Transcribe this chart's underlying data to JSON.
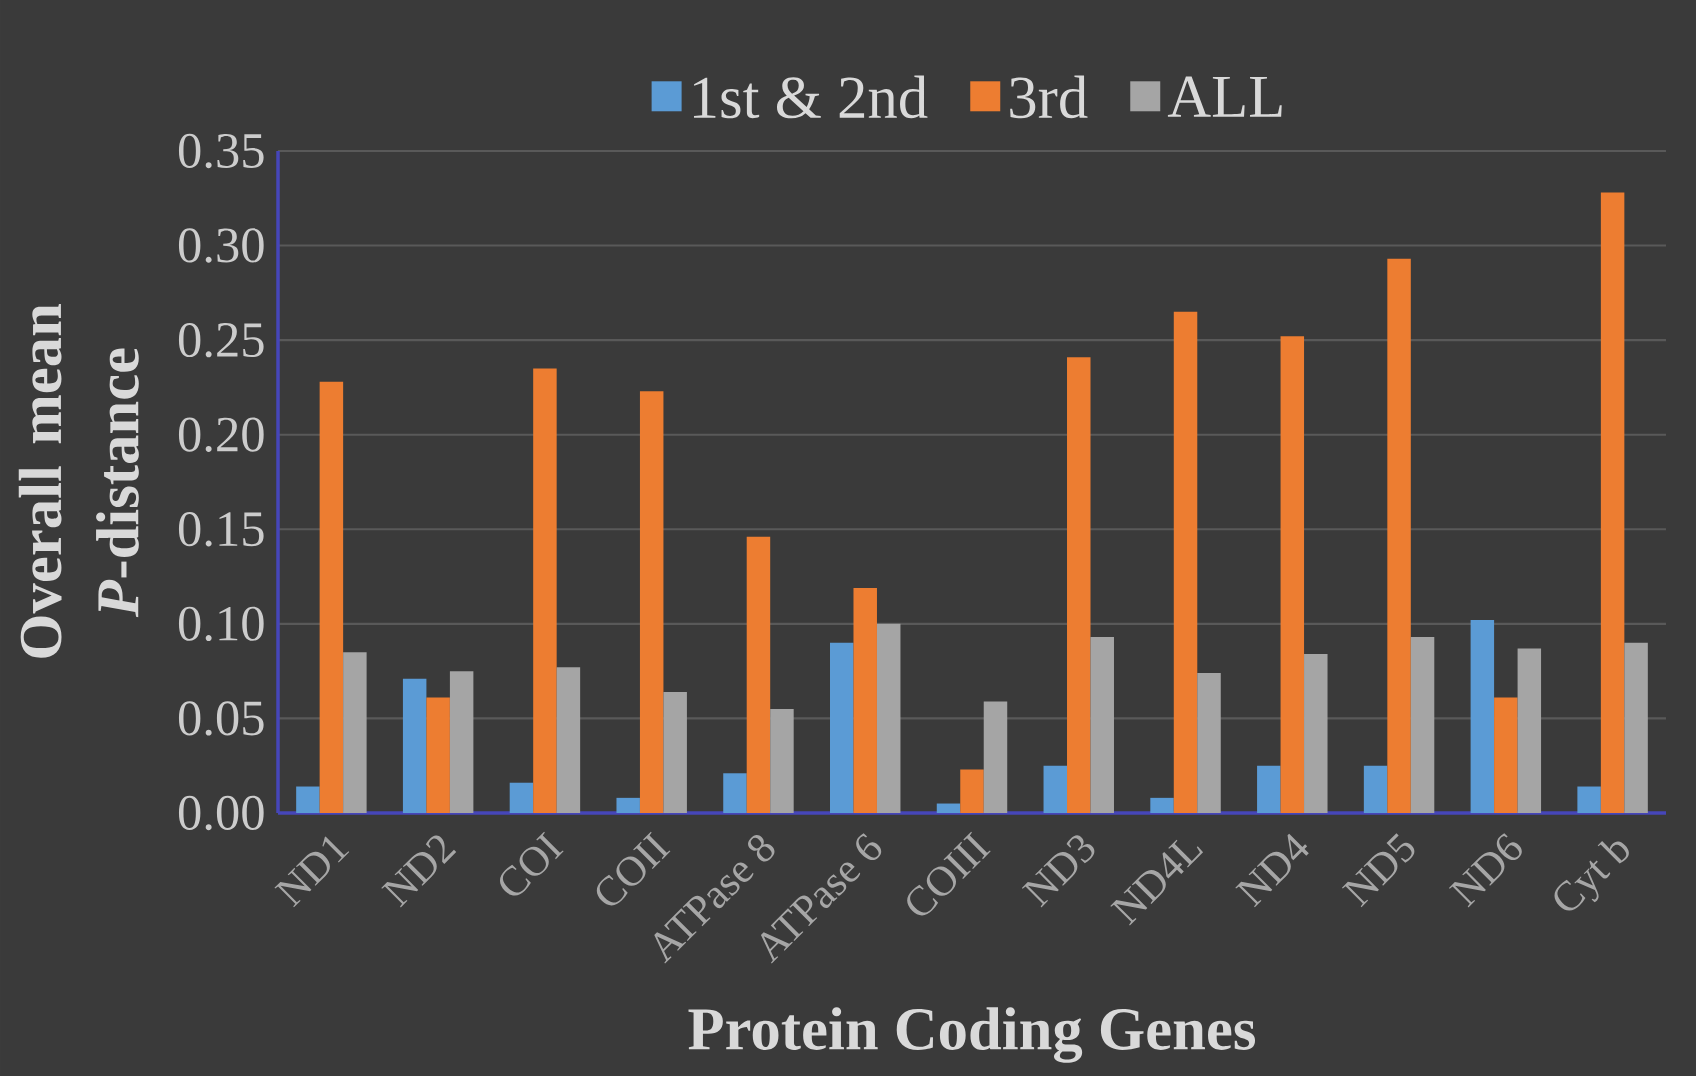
{
  "chart_data": {
    "type": "bar",
    "xlabel": "Protein Coding Genes",
    "ylabel": "Overall mean *P*-distance",
    "categories": [
      "ND1",
      "ND2",
      "COI",
      "COII",
      "ATPase 8",
      "ATPase 6",
      "COIII",
      "ND3",
      "ND4L",
      "ND4",
      "ND5",
      "ND6",
      "Cyt b"
    ],
    "series": [
      {
        "name": "1st & 2nd",
        "color": "#5b9bd5",
        "values": [
          0.014,
          0.071,
          0.016,
          0.008,
          0.021,
          0.09,
          0.005,
          0.025,
          0.008,
          0.025,
          0.025,
          0.102,
          0.014
        ]
      },
      {
        "name": "3rd",
        "color": "#ed7d31",
        "values": [
          0.228,
          0.061,
          0.235,
          0.223,
          0.146,
          0.119,
          0.023,
          0.241,
          0.265,
          0.252,
          0.293,
          0.061,
          0.328
        ]
      },
      {
        "name": "ALL",
        "color": "#a5a5a5",
        "values": [
          0.085,
          0.075,
          0.077,
          0.064,
          0.055,
          0.1,
          0.059,
          0.093,
          0.074,
          0.084,
          0.093,
          0.087,
          0.09
        ]
      }
    ],
    "ylim": [
      0,
      0.35
    ],
    "yticks": [
      {
        "value": 0,
        "label": "0.00"
      },
      {
        "value": 0.05,
        "label": "0.05"
      },
      {
        "value": 0.1,
        "label": "0.10"
      },
      {
        "value": 0.15,
        "label": "0.15"
      },
      {
        "value": 0.2,
        "label": "0.20"
      },
      {
        "value": 0.25,
        "label": "0.25"
      },
      {
        "value": 0.3,
        "label": "0.30"
      },
      {
        "value": 0.35,
        "label": "0.35"
      }
    ],
    "grid": "y",
    "legend": "top"
  }
}
